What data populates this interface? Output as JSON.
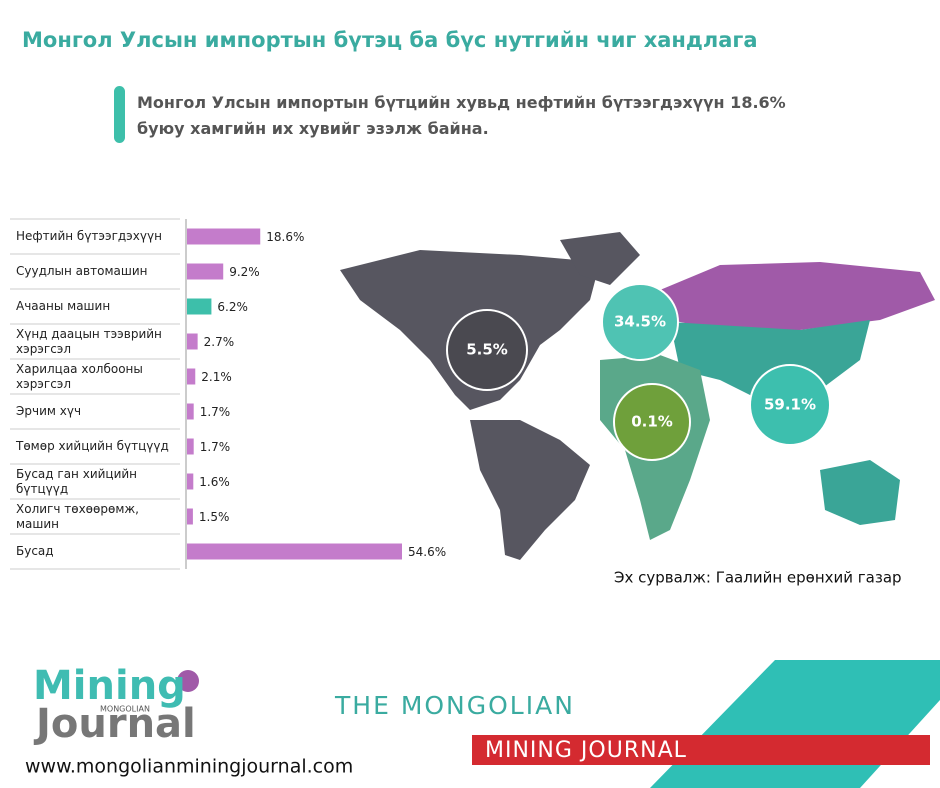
{
  "header": {
    "title": "Монгол Улсын импортын бүтэц ба бүс нутгийн чиг хандлага",
    "subtitle": "Монгол Улсын импортын бүтцийн хувьд нефтийн бүтээгдэхүүн 18.6% буюу хамгийн их хувийг эзэлж байна."
  },
  "chart_data": {
    "type": "bar",
    "orientation": "horizontal",
    "categories": [
      "Нефтийн бүтээгдэхүүн",
      "Суудлын автомашин",
      "Ачааны машин",
      "Хүнд даацын тээврийн хэрэгсэл",
      "Харилцаа холбооны хэрэгсэл",
      "Эрчим хүч",
      "Төмөр хийцийн бүтцүүд",
      "Бусад ган хийцийн бүтцүүд",
      "Холигч төхөөрөмж, машин",
      "Бусад"
    ],
    "values": [
      18.6,
      9.2,
      6.2,
      2.7,
      2.1,
      1.7,
      1.7,
      1.6,
      1.5,
      54.6
    ],
    "value_labels": [
      "18.6%",
      "9.2%",
      "6.2%",
      "2.7%",
      "2.1%",
      "1.7%",
      "1.7%",
      "1.6%",
      "1.5%",
      "54.6%"
    ],
    "colors": [
      "#c47ccb",
      "#c47ccb",
      "#3dbfaa",
      "#c47ccb",
      "#c47ccb",
      "#c47ccb",
      "#c47ccb",
      "#c47ccb",
      "#c47ccb",
      "#c47ccb"
    ]
  },
  "map": {
    "bubbles": [
      "5.5%",
      "34.5%",
      "0.1%",
      "59.1%"
    ],
    "source": "Эх сурвалж: Гаалийн ерөнхий газар"
  },
  "footer": {
    "logo_top": "Mining",
    "logo_small": "MONGOLIAN",
    "logo_bottom": "Journal",
    "url": "www.mongolianminingjournal.com",
    "brand_top": "THE MONGOLIAN",
    "brand_bottom": "MINING JOURNAL"
  }
}
